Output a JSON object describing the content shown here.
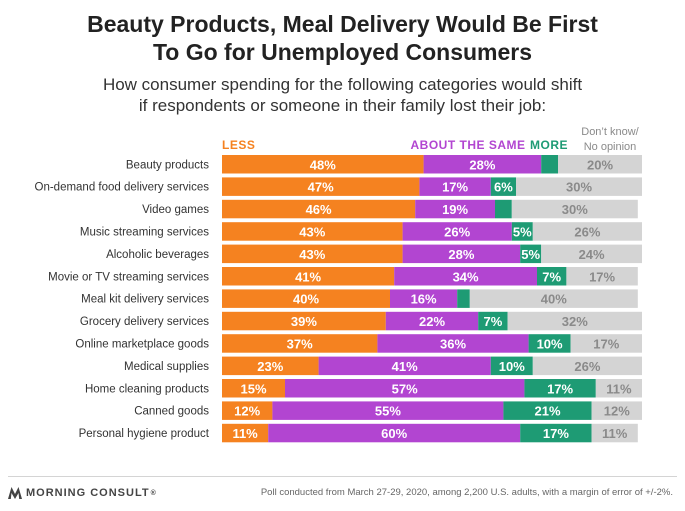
{
  "title_lines": [
    "Beauty Products, Meal Delivery Would Be First",
    "To Go for Unemployed Consumers"
  ],
  "subtitle_lines": [
    "How consumer spending for the following categories would shift",
    "if respondents or someone in their family lost their job:"
  ],
  "brand": {
    "name": "MORNING CONSULT",
    "mark": "®",
    "logo_icon": "morning-consult-logo-icon"
  },
  "source": "Poll conducted from March 27-29, 2020, among 2,200 U.S. adults, with a margin of error of +/-2%.",
  "colors": {
    "less": "#f58220",
    "same": "#b245d1",
    "more": "#1e9b74",
    "dont_know": "#d4d4d4",
    "dont_know_text": "#8a8a8a",
    "title": "#222222"
  },
  "chart_data": {
    "type": "bar",
    "orientation": "horizontal",
    "stacked": true,
    "xlim": [
      0,
      100
    ],
    "value_suffix": "%",
    "categories": [
      "Beauty products",
      "On-demand food delivery services",
      "Video games",
      "Music streaming services",
      "Alcoholic beverages",
      "Movie or TV streaming services",
      "Meal kit delivery services",
      "Grocery delivery services",
      "Online marketplace goods",
      "Medical supplies",
      "Home cleaning products",
      "Canned goods",
      "Personal hygiene product"
    ],
    "series": [
      {
        "name": "LESS",
        "color": "#f58220",
        "values": [
          48,
          47,
          46,
          43,
          43,
          41,
          40,
          39,
          37,
          23,
          15,
          12,
          11
        ],
        "labels": [
          "48%",
          "47%",
          "46%",
          "43%",
          "43%",
          "41%",
          "40%",
          "39%",
          "37%",
          "23%",
          "15%",
          "12%",
          "11%"
        ]
      },
      {
        "name": "ABOUT THE SAME",
        "color": "#b245d1",
        "values": [
          28,
          17,
          19,
          26,
          28,
          34,
          16,
          22,
          36,
          41,
          57,
          55,
          60
        ],
        "labels": [
          "28%",
          "17%",
          "19%",
          "26%",
          "28%",
          "34%",
          "16%",
          "22%",
          "36%",
          "41%",
          "57%",
          "55%",
          "60%"
        ]
      },
      {
        "name": "MORE",
        "color": "#1e9b74",
        "values": [
          4,
          6,
          4,
          5,
          5,
          7,
          3,
          7,
          10,
          10,
          17,
          21,
          17
        ],
        "labels": [
          "",
          "6%",
          "",
          "5%",
          "5%",
          "7%",
          "",
          "7%",
          "10%",
          "10%",
          "17%",
          "21%",
          "17%"
        ]
      },
      {
        "name": "Don’t know/ No opinion",
        "color": "#d4d4d4",
        "values": [
          20,
          30,
          30,
          26,
          24,
          17,
          40,
          32,
          17,
          26,
          11,
          12,
          11
        ],
        "labels": [
          "20%",
          "30%",
          "30%",
          "26%",
          "24%",
          "17%",
          "40%",
          "32%",
          "17%",
          "26%",
          "11%",
          "12%",
          "11%"
        ]
      }
    ],
    "legend": [
      {
        "label": "LESS",
        "color": "#f58220"
      },
      {
        "label": "ABOUT THE SAME",
        "color": "#b245d1"
      },
      {
        "label": "MORE",
        "color": "#1e9b74"
      },
      {
        "label": "Don’t know/ No opinion",
        "lines": [
          "Don’t know/",
          "No opinion"
        ],
        "color": "#8a8a8a"
      }
    ]
  }
}
